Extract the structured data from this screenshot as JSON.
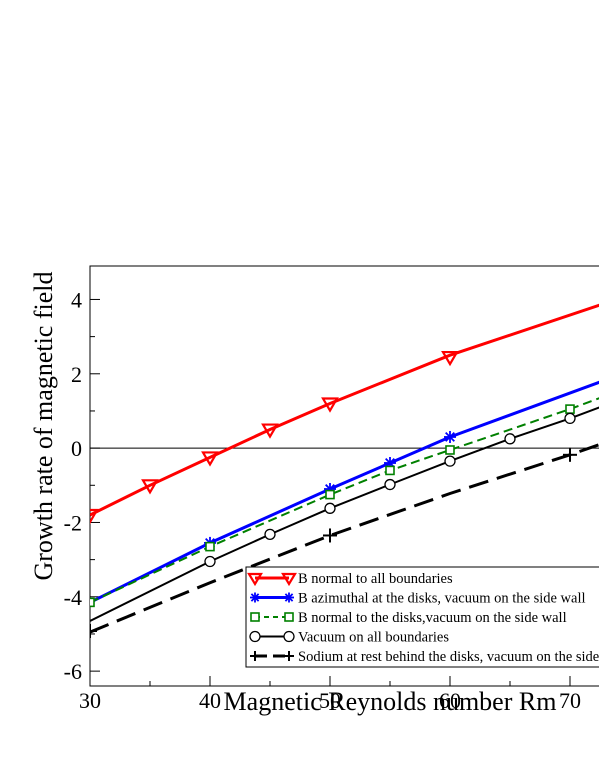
{
  "chart_data": {
    "type": "line",
    "xlabel": "Magnetic Reynolds number Rm",
    "ylabel": "Growth rate of magnetic field",
    "xlim": [
      30,
      72.5
    ],
    "ylim": [
      -6.4,
      4.9
    ],
    "xticks": [
      30,
      40,
      50,
      60,
      70
    ],
    "yticks": [
      -6,
      -4,
      -2,
      0,
      2,
      4
    ],
    "x_minor_step": 5,
    "y_minor_step": 1,
    "zero_line": true,
    "grid": false,
    "legend_placement": "bottom-right",
    "series": [
      {
        "name": "B normal to all boundaries",
        "color": "#ff0000",
        "dash": "solid",
        "marker": "triangle-down",
        "curve_x": [
          30,
          35,
          40,
          45,
          50,
          60,
          72.5
        ],
        "curve_y": [
          -1.8,
          -1.0,
          -0.25,
          0.5,
          1.2,
          2.5,
          3.85
        ],
        "marker_x": [
          30,
          35,
          40,
          45,
          50,
          60
        ],
        "marker_y": [
          -1.8,
          -1.0,
          -0.25,
          0.5,
          1.2,
          2.45
        ]
      },
      {
        "name": "B azimuthal at the disks, vacuum on the side wall",
        "color": "#0000ff",
        "dash": "solid",
        "marker": "asterisk",
        "curve_x": [
          30,
          40,
          50,
          55,
          60,
          72.5
        ],
        "curve_y": [
          -4.15,
          -2.55,
          -1.1,
          -0.4,
          0.3,
          1.78
        ],
        "marker_x": [
          40,
          50,
          55,
          60
        ],
        "marker_y": [
          -2.55,
          -1.1,
          -0.4,
          0.3
        ]
      },
      {
        "name": "B normal to the disks,vacuum on the side wall",
        "color": "#008000",
        "dash": "dashed",
        "marker": "square",
        "curve_x": [
          30,
          40,
          50,
          55,
          60,
          70,
          72.5
        ],
        "curve_y": [
          -4.15,
          -2.65,
          -1.25,
          -0.6,
          -0.05,
          1.05,
          1.35
        ],
        "marker_x": [
          30,
          40,
          50,
          55,
          60,
          70
        ],
        "marker_y": [
          -4.15,
          -2.65,
          -1.25,
          -0.6,
          -0.05,
          1.05
        ]
      },
      {
        "name": "Vacuum on all boundaries",
        "color": "#000000",
        "dash": "solid",
        "marker": "circle",
        "curve_x": [
          30,
          40,
          45,
          50,
          55,
          60,
          65,
          70,
          72.5
        ],
        "curve_y": [
          -4.65,
          -3.05,
          -2.32,
          -1.62,
          -0.98,
          -0.35,
          0.25,
          0.8,
          1.1
        ],
        "marker_x": [
          40,
          45,
          50,
          55,
          60,
          65,
          70
        ],
        "marker_y": [
          -3.05,
          -2.32,
          -1.62,
          -0.98,
          -0.35,
          0.25,
          0.8
        ]
      },
      {
        "name": "Sodium at rest behind the disks, vacuum on the side wall",
        "color": "#000000",
        "dash": "longdash",
        "marker": "plus",
        "curve_x": [
          30,
          40,
          50,
          60,
          70,
          72.5
        ],
        "curve_y": [
          -4.95,
          -3.62,
          -2.35,
          -1.22,
          -0.18,
          0.1
        ],
        "marker_x": [
          30,
          50,
          70
        ],
        "marker_y": [
          -4.92,
          -2.35,
          -0.18
        ]
      }
    ]
  }
}
